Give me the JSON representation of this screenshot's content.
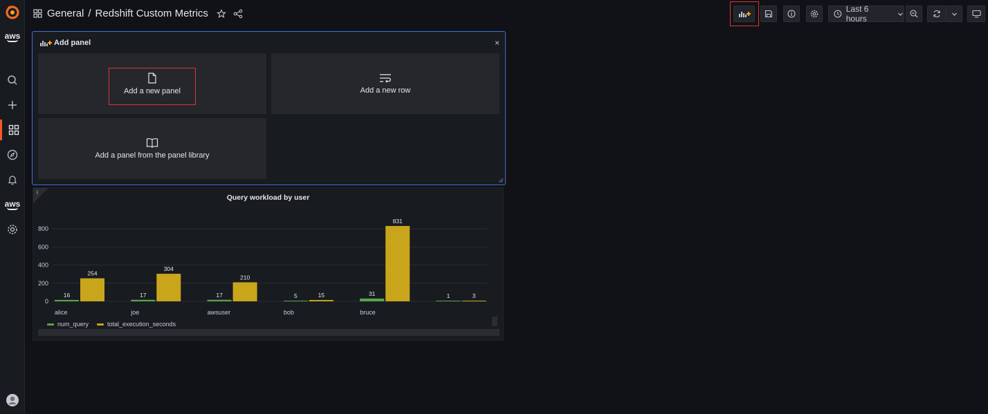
{
  "breadcrumb": {
    "folder": "General",
    "separator": "/",
    "dashboard": "Redshift Custom Metrics"
  },
  "toolbar": {
    "time_range": "Last 6 hours"
  },
  "sidebar": {
    "aws_label_top": "aws",
    "aws_label_bottom": "aws"
  },
  "add_panel": {
    "title": "Add panel",
    "close": "×",
    "new_panel": "Add a new panel",
    "new_row": "Add a new row",
    "from_library": "Add a panel from the panel library"
  },
  "chart_corner_icon": "i",
  "colors": {
    "num_query": "#56a64b",
    "total_execution_seconds": "#c9a51c",
    "accent": "#f05a28",
    "focus": "#3d71d9"
  },
  "chart_data": {
    "type": "bar",
    "title": "Query workload by user",
    "categories": [
      "alice",
      "joe",
      "awsuser",
      "bob",
      "bruce",
      ""
    ],
    "series": [
      {
        "name": "num_query",
        "values": [
          16,
          17,
          17,
          5,
          31,
          1
        ]
      },
      {
        "name": "total_execution_seconds",
        "values": [
          254,
          304,
          210,
          15,
          831,
          3
        ]
      }
    ],
    "yticks": [
      "800",
      "600",
      "400",
      "200",
      "0"
    ],
    "ylim": [
      0,
      850
    ],
    "grid": true,
    "legend": "bottom-left"
  }
}
